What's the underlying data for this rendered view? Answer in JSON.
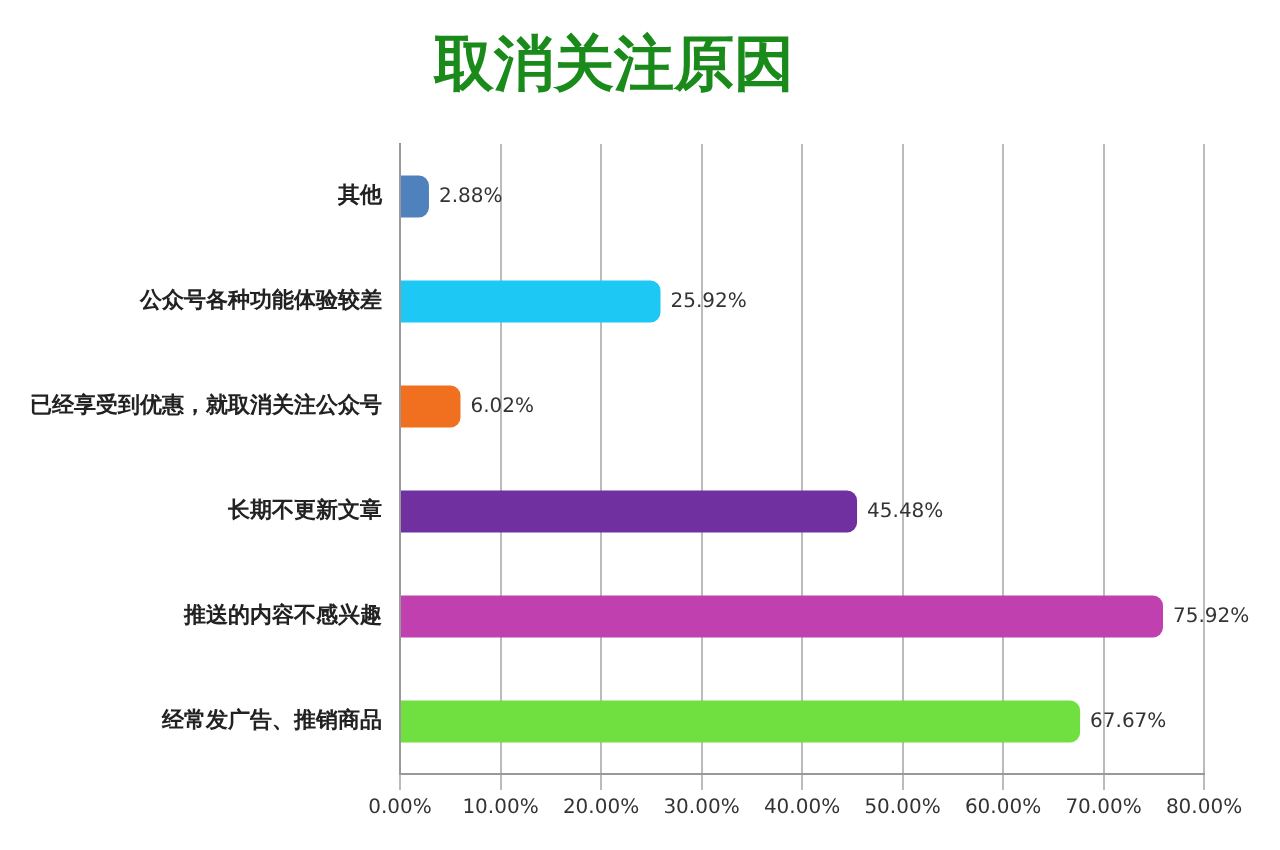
{
  "chart_data": {
    "type": "bar",
    "orientation": "horizontal",
    "title": "取消关注原因",
    "categories": [
      "其他",
      "公众号各种功能体验较差",
      "已经享受到优惠，就取消关注公众号",
      "长期不更新文章",
      "推送的内容不感兴趣",
      "经常发广告、推销商品"
    ],
    "values": [
      2.88,
      25.92,
      6.02,
      45.48,
      75.92,
      67.67
    ],
    "colors": [
      "#4f81bd",
      "#1ec8f5",
      "#f07020",
      "#7030a0",
      "#c040b0",
      "#70e040"
    ],
    "value_labels": [
      "2.88%",
      "25.92%",
      "6.02%",
      "45.48%",
      "75.92%",
      "67.67%"
    ],
    "xlim": [
      0,
      80
    ],
    "xticks": [
      {
        "value": 0,
        "label": "0.00%"
      },
      {
        "value": 10,
        "label": "10.00%"
      },
      {
        "value": 20,
        "label": "20.00%"
      },
      {
        "value": 30,
        "label": "30.00%"
      },
      {
        "value": 40,
        "label": "40.00%"
      },
      {
        "value": 50,
        "label": "50.00%"
      },
      {
        "value": 60,
        "label": "60.00%"
      },
      {
        "value": 70,
        "label": "70.00%"
      },
      {
        "value": 80,
        "label": "80.00%"
      }
    ],
    "grid": "x",
    "legend": false
  }
}
